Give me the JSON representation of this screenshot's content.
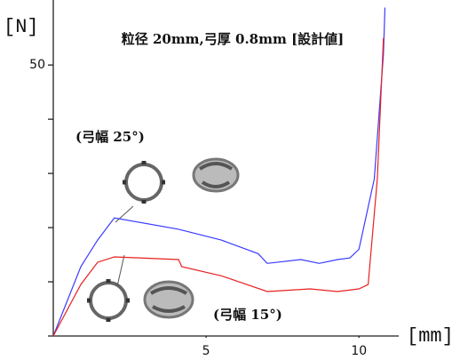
{
  "chart_data": {
    "type": "line",
    "title": "粒径 20mm,弓厚 0.8mm [設計値]",
    "y_label": "[N]",
    "x_label": "[mm]",
    "xlim": [
      0,
      11.3
    ],
    "xticks": [
      5,
      10
    ],
    "ylim": [
      0,
      62
    ],
    "yticks": [
      50
    ],
    "y_minor_ticks": [
      0,
      10,
      20,
      30,
      40
    ],
    "series": [
      {
        "name": "(弓幅 25°)",
        "color": "#3b3bff",
        "x": [
          0,
          0.9,
          1.45,
          2.0,
          4.1,
          5.5,
          6.7,
          7.0,
          8.1,
          8.7,
          9.3,
          9.7,
          10.0,
          10.5,
          10.8,
          10.85
        ],
        "values": [
          0,
          12.8,
          17.7,
          21.8,
          19.7,
          17.7,
          15.2,
          13.4,
          14.1,
          13.4,
          14.1,
          14.4,
          16,
          29,
          52,
          60.6
        ]
      },
      {
        "name": "(弓幅 15°)",
        "color": "#e82020",
        "x": [
          0,
          0.9,
          1.45,
          2.0,
          4.1,
          4.2,
          5.5,
          7.0,
          8.4,
          9.3,
          10.0,
          10.3,
          10.6,
          10.8
        ],
        "values": [
          0,
          9.5,
          13.6,
          14.6,
          14.1,
          12.8,
          11.1,
          8.2,
          8.7,
          8.2,
          8.7,
          9.5,
          29,
          55
        ]
      }
    ]
  }
}
